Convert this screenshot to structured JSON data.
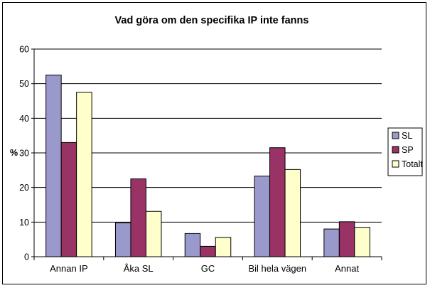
{
  "chart_data": {
    "type": "bar",
    "title": "Vad göra om den specifika IP inte fanns",
    "ylabel": "%",
    "xlabel": "",
    "ylim": [
      0,
      60
    ],
    "yticks": [
      0,
      10,
      20,
      30,
      40,
      50,
      60
    ],
    "grid": true,
    "legend_position": "right",
    "categories": [
      "Annan IP",
      "Åka SL",
      "GC",
      "Bil hela vägen",
      "Annat"
    ],
    "series": [
      {
        "name": "SL",
        "color": "#9999cc",
        "values": [
          52.5,
          9.8,
          6.7,
          23.3,
          8.0
        ]
      },
      {
        "name": "SP",
        "color": "#993366",
        "values": [
          33.0,
          22.5,
          3.0,
          31.5,
          10.1
        ]
      },
      {
        "name": "Totalt",
        "color": "#ffffcc",
        "values": [
          47.5,
          13.1,
          5.6,
          25.2,
          8.5
        ]
      }
    ]
  }
}
